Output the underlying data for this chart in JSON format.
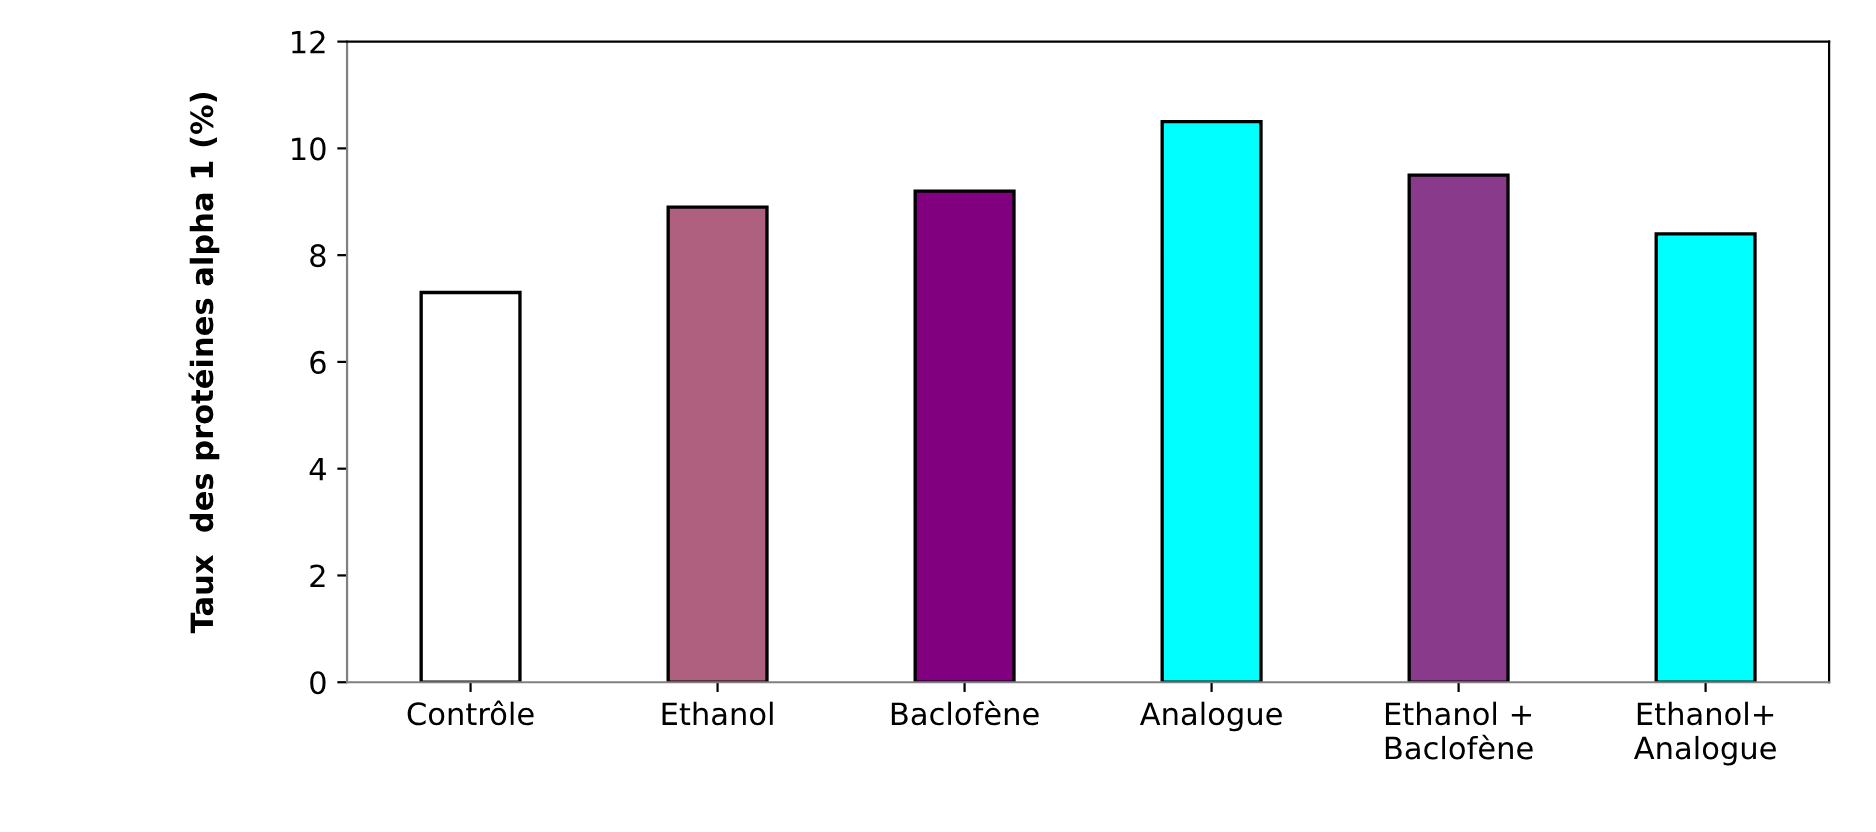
{
  "chart_data": {
    "type": "bar",
    "ylabel": "Taux  des protéines alpha 1 (%)",
    "categories": [
      "Contrôle",
      "Ethanol",
      "Baclofène",
      "Analogue",
      "Ethanol +\nBaclofène",
      "Ethanol+\nAnalogue"
    ],
    "values": [
      7.3,
      8.9,
      9.2,
      10.5,
      9.5,
      8.4
    ],
    "colors": [
      "#ffffff",
      "#b0607f",
      "#800080",
      "#00ffff",
      "#8a3a8a",
      "#00ffff"
    ],
    "ylim": [
      0,
      12
    ],
    "yticks": [
      0,
      2,
      4,
      6,
      8,
      10,
      12
    ],
    "grid": false,
    "legend": false
  }
}
